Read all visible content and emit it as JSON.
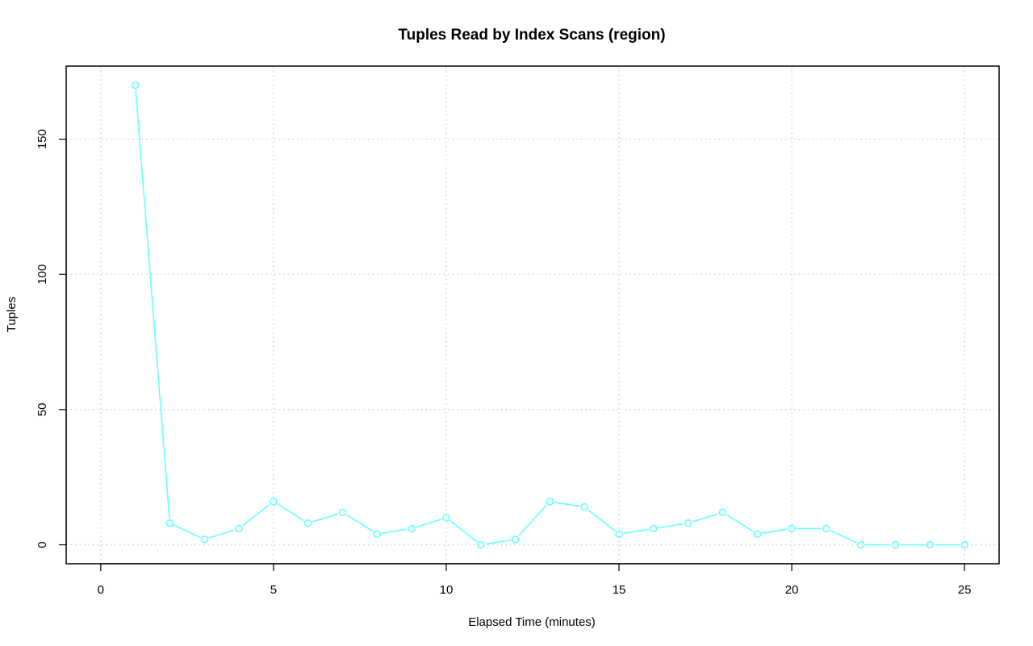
{
  "chart_data": {
    "type": "line",
    "title": "Tuples Read by Index Scans (region)",
    "xlabel": "Elapsed Time (minutes)",
    "ylabel": "Tuples",
    "xlim": [
      -1,
      26
    ],
    "ylim": [
      -7,
      177
    ],
    "x_ticks": [
      0,
      5,
      10,
      15,
      20,
      25
    ],
    "y_ticks": [
      0,
      50,
      100,
      150
    ],
    "grid": true,
    "series_color": "#66ffff",
    "series": [
      {
        "x": [
          1,
          2,
          3,
          4,
          5,
          6,
          7,
          8,
          9,
          10,
          11,
          12,
          13,
          14,
          15,
          16,
          17,
          18,
          19,
          20,
          21,
          22,
          23,
          24,
          25
        ],
        "values": [
          170,
          8,
          2,
          6,
          16,
          8,
          12,
          4,
          6,
          10,
          0,
          2,
          16,
          14,
          4,
          6,
          8,
          12,
          4,
          6,
          6,
          0,
          0,
          0,
          0
        ]
      }
    ]
  }
}
